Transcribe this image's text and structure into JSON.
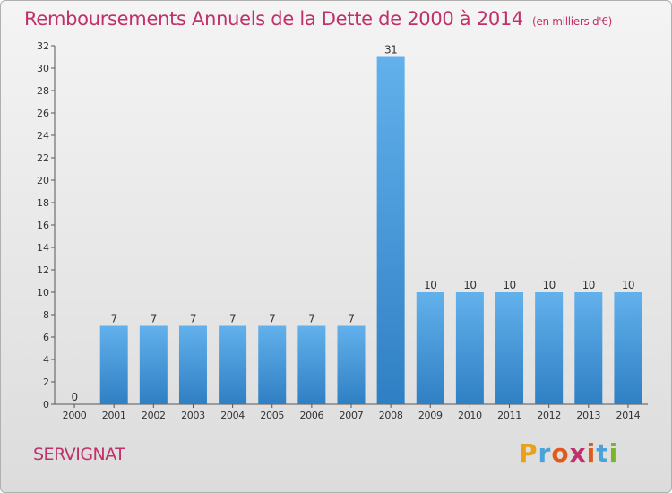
{
  "header": {
    "title": "Remboursements Annuels de la Dette de 2000 à 2014",
    "unit": "(en milliers d'€)"
  },
  "footer": {
    "city": "SERVIGNAT",
    "logo": "Proxiti",
    "logo_colors": [
      "#e8a21a",
      "#4aa2d8",
      "#e05a1c",
      "#c0306a",
      "#e05a1c",
      "#4aa2d8",
      "#79b52a"
    ]
  },
  "colors": {
    "title": "#c0306a",
    "bar_light": "#62b1ec",
    "bar_dark": "#2f7fc4"
  },
  "chart_data": {
    "type": "bar",
    "title": "Remboursements Annuels de la Dette de 2000 à 2014",
    "categories": [
      "2000",
      "2001",
      "2002",
      "2003",
      "2004",
      "2005",
      "2006",
      "2007",
      "2008",
      "2009",
      "2010",
      "2011",
      "2012",
      "2013",
      "2014"
    ],
    "values": [
      0,
      7,
      7,
      7,
      7,
      7,
      7,
      7,
      31,
      10,
      10,
      10,
      10,
      10,
      10
    ],
    "ylim": [
      0,
      32
    ],
    "yticks": [
      0,
      2,
      4,
      6,
      8,
      10,
      12,
      14,
      16,
      18,
      20,
      22,
      24,
      26,
      28,
      30,
      32
    ],
    "data_labels": true,
    "grid": false,
    "xlabel": "",
    "ylabel": ""
  }
}
